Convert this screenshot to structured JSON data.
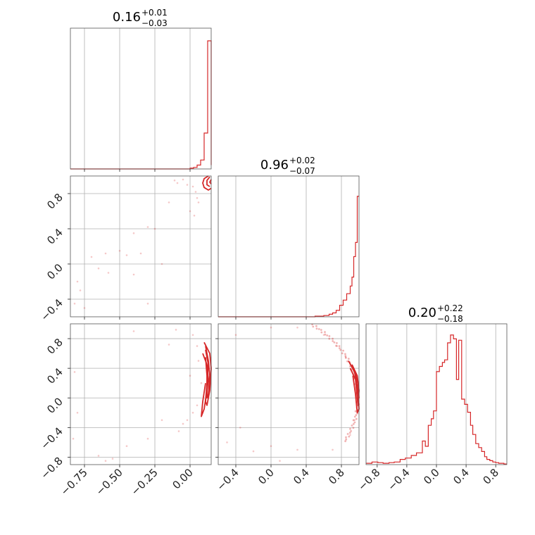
{
  "chart_data": [
    {
      "type": "histogram",
      "panel": "param1-marginal",
      "title": {
        "median": "0.16",
        "plus": "+0.01",
        "minus": "−0.03"
      },
      "xlim": [
        -0.85,
        0.15
      ],
      "grid_x": [
        -0.75,
        -0.5,
        -0.25,
        0.0
      ],
      "bin_width": 0.025,
      "bins": [
        {
          "x": -0.85,
          "y": 0
        },
        {
          "x": 0.0,
          "y": 0.006
        },
        {
          "x": 0.025,
          "y": 0.012
        },
        {
          "x": 0.05,
          "y": 0.03
        },
        {
          "x": 0.075,
          "y": 0.07
        },
        {
          "x": 0.1,
          "y": 0.28
        },
        {
          "x": 0.125,
          "y": 1.0
        },
        {
          "x": 0.15,
          "y": 0.03
        }
      ]
    },
    {
      "type": "scatter_contour",
      "panel": "param2-vs-param1",
      "xlim": [
        -0.85,
        0.15
      ],
      "ylim": [
        -0.6,
        1.0
      ],
      "grid_x": [
        -0.75,
        -0.5,
        -0.25,
        0.0
      ],
      "grid_y": [
        -0.4,
        0.0,
        0.4,
        0.8
      ],
      "yticklabels": [
        "−0.4",
        "0.0",
        "0.4",
        "0.8"
      ],
      "points": [
        [
          -0.11,
          0.95
        ],
        [
          -0.09,
          0.92
        ],
        [
          -0.05,
          0.96
        ],
        [
          -0.02,
          0.9
        ],
        [
          0.02,
          0.88
        ],
        [
          0.04,
          0.82
        ],
        [
          0.05,
          0.75
        ],
        [
          0.06,
          0.7
        ],
        [
          0.0,
          0.6
        ],
        [
          0.03,
          0.55
        ],
        [
          -0.15,
          0.7
        ],
        [
          -0.3,
          0.42
        ],
        [
          -0.25,
          0.4
        ],
        [
          -0.4,
          0.35
        ],
        [
          -0.5,
          0.15
        ],
        [
          -0.45,
          0.1
        ],
        [
          -0.6,
          0.12
        ],
        [
          -0.7,
          0.08
        ],
        [
          -0.65,
          -0.05
        ],
        [
          -0.8,
          -0.2
        ],
        [
          -0.78,
          -0.3
        ],
        [
          -0.82,
          -0.45
        ],
        [
          -0.75,
          -0.5
        ],
        [
          -0.35,
          0.12
        ],
        [
          -0.4,
          -0.12
        ],
        [
          -0.58,
          -0.1
        ],
        [
          -0.3,
          -0.45
        ],
        [
          -0.2,
          0.0
        ]
      ],
      "contours": [
        [
          [
            0.13,
            1.0
          ],
          [
            0.1,
            0.97
          ],
          [
            0.09,
            0.92
          ],
          [
            0.1,
            0.87
          ],
          [
            0.13,
            0.84
          ],
          [
            0.15,
            0.86
          ]
        ],
        [
          [
            0.14,
            0.99
          ],
          [
            0.12,
            0.95
          ],
          [
            0.12,
            0.9
          ],
          [
            0.14,
            0.88
          ]
        ],
        [
          [
            0.15,
            0.96
          ],
          [
            0.14,
            0.93
          ],
          [
            0.15,
            0.91
          ]
        ]
      ]
    },
    {
      "type": "histogram",
      "panel": "param2-marginal",
      "title": {
        "median": "0.96",
        "plus": "+0.02",
        "minus": "−0.07"
      },
      "xlim": [
        -0.6,
        1.0
      ],
      "grid_x": [
        -0.4,
        0.0,
        0.4,
        0.8
      ],
      "bin_width": 0.02,
      "bins": [
        {
          "x": -0.6,
          "y": 0
        },
        {
          "x": 0.5,
          "y": 0.005
        },
        {
          "x": 0.6,
          "y": 0.01
        },
        {
          "x": 0.66,
          "y": 0.02
        },
        {
          "x": 0.7,
          "y": 0.03
        },
        {
          "x": 0.74,
          "y": 0.05
        },
        {
          "x": 0.78,
          "y": 0.09
        },
        {
          "x": 0.82,
          "y": 0.13
        },
        {
          "x": 0.86,
          "y": 0.18
        },
        {
          "x": 0.9,
          "y": 0.24
        },
        {
          "x": 0.92,
          "y": 0.31
        },
        {
          "x": 0.94,
          "y": 0.47
        },
        {
          "x": 0.96,
          "y": 0.58
        },
        {
          "x": 0.98,
          "y": 0.94
        }
      ]
    },
    {
      "type": "scatter_contour",
      "panel": "param3-vs-param1",
      "xlim": [
        -0.85,
        0.15
      ],
      "ylim": [
        -0.9,
        1.0
      ],
      "grid_x": [
        -0.75,
        -0.5,
        -0.25,
        0.0
      ],
      "grid_y": [
        -0.8,
        -0.4,
        0.0,
        0.4,
        0.8
      ],
      "xticklabels": [
        "−0.75",
        "−0.50",
        "−0.25",
        "0.00"
      ],
      "yticklabels": [
        "−0.8",
        "−0.4",
        "0.0",
        "0.4",
        "0.8"
      ],
      "points": [
        [
          -0.4,
          0.9
        ],
        [
          -0.1,
          0.92
        ],
        [
          0.02,
          0.85
        ],
        [
          0.05,
          0.7
        ],
        [
          0.06,
          0.5
        ],
        [
          0.08,
          0.2
        ],
        [
          0.05,
          -0.1
        ],
        [
          0.02,
          -0.2
        ],
        [
          -0.02,
          -0.3
        ],
        [
          -0.05,
          -0.35
        ],
        [
          -0.08,
          -0.45
        ],
        [
          -0.15,
          0.72
        ],
        [
          -0.3,
          -0.55
        ],
        [
          -0.45,
          -0.65
        ],
        [
          -0.55,
          -0.82
        ],
        [
          -0.6,
          -0.85
        ],
        [
          -0.65,
          -0.78
        ],
        [
          -0.83,
          -0.55
        ],
        [
          -0.8,
          -0.2
        ],
        [
          -0.82,
          0.35
        ],
        [
          -0.2,
          -0.3
        ],
        [
          0.0,
          0.3
        ]
      ],
      "contours": [
        [
          [
            0.1,
            0.75
          ],
          [
            0.14,
            0.6
          ],
          [
            0.15,
            0.4
          ],
          [
            0.14,
            0.1
          ],
          [
            0.12,
            -0.1
          ],
          [
            0.11,
            -0.05
          ],
          [
            0.12,
            0.2
          ],
          [
            0.13,
            0.45
          ],
          [
            0.11,
            0.65
          ]
        ],
        [
          [
            0.11,
            0.7
          ],
          [
            0.13,
            0.5
          ],
          [
            0.14,
            0.3
          ],
          [
            0.13,
            0.05
          ],
          [
            0.12,
            0.0
          ],
          [
            0.12,
            0.3
          ],
          [
            0.11,
            0.55
          ]
        ],
        [
          [
            0.09,
            0.6
          ],
          [
            0.12,
            0.45
          ],
          [
            0.13,
            0.25
          ],
          [
            0.12,
            0.1
          ],
          [
            0.1,
            -0.15
          ],
          [
            0.08,
            -0.25
          ],
          [
            0.09,
            -0.05
          ],
          [
            0.11,
            0.2
          ]
        ]
      ]
    },
    {
      "type": "scatter_contour",
      "panel": "param3-vs-param2",
      "xlim": [
        -0.6,
        1.0
      ],
      "ylim": [
        -0.9,
        1.0
      ],
      "grid_x": [
        -0.4,
        0.0,
        0.4,
        0.8
      ],
      "grid_y": [
        -0.8,
        -0.4,
        0.0,
        0.4,
        0.8
      ],
      "xticklabels": [
        "−0.4",
        "0.0",
        "0.4",
        "0.8"
      ],
      "points": [
        [
          -0.4,
          0.85
        ],
        [
          0.0,
          0.95
        ],
        [
          0.3,
          0.95
        ],
        [
          0.6,
          0.85
        ],
        [
          0.75,
          0.7
        ],
        [
          0.85,
          0.55
        ],
        [
          0.95,
          -0.3
        ],
        [
          0.9,
          -0.5
        ],
        [
          0.3,
          -0.7
        ],
        [
          0.0,
          -0.65
        ],
        [
          -0.2,
          -0.72
        ],
        [
          -0.35,
          -0.4
        ],
        [
          0.1,
          -0.85
        ],
        [
          0.7,
          -0.7
        ],
        [
          -0.5,
          -0.6
        ]
      ],
      "arc": {
        "cx": -0.2,
        "cy": 0.0,
        "r": 1.19,
        "from_deg": 62,
        "to_deg": -30
      },
      "contours": [
        [
          [
            0.92,
            0.45
          ],
          [
            0.98,
            0.3
          ],
          [
            1.0,
            0.1
          ],
          [
            0.99,
            -0.1
          ],
          [
            0.98,
            0.0
          ],
          [
            0.96,
            0.25
          ],
          [
            0.9,
            0.4
          ]
        ],
        [
          [
            0.94,
            0.4
          ],
          [
            0.99,
            0.2
          ],
          [
            1.0,
            0.0
          ],
          [
            0.97,
            0.15
          ]
        ],
        [
          [
            0.88,
            0.5
          ],
          [
            0.95,
            0.35
          ],
          [
            0.99,
            0.1
          ],
          [
            1.0,
            -0.15
          ],
          [
            0.98,
            -0.2
          ],
          [
            0.96,
            0.05
          ],
          [
            0.93,
            0.3
          ]
        ]
      ]
    },
    {
      "type": "histogram",
      "panel": "param3-marginal",
      "title": {
        "median": "0.20",
        "plus": "+0.22",
        "minus": "−0.18"
      },
      "xlim": [
        -0.95,
        0.95
      ],
      "grid_x": [
        -0.8,
        -0.4,
        0.0,
        0.4,
        0.8
      ],
      "xticklabels": [
        "−0.8",
        "−0.4",
        "0.0",
        "0.4",
        "0.8"
      ],
      "bin_width": 0.038,
      "bins": [
        {
          "x": -0.95,
          "y": 0.01
        },
        {
          "x": -0.87,
          "y": 0.02
        },
        {
          "x": -0.79,
          "y": 0.015
        },
        {
          "x": -0.72,
          "y": 0.01
        },
        {
          "x": -0.64,
          "y": 0.015
        },
        {
          "x": -0.57,
          "y": 0.02
        },
        {
          "x": -0.49,
          "y": 0.04
        },
        {
          "x": -0.42,
          "y": 0.05
        },
        {
          "x": -0.34,
          "y": 0.07
        },
        {
          "x": -0.27,
          "y": 0.09
        },
        {
          "x": -0.19,
          "y": 0.18
        },
        {
          "x": -0.15,
          "y": 0.14
        },
        {
          "x": -0.11,
          "y": 0.3
        },
        {
          "x": -0.07,
          "y": 0.35
        },
        {
          "x": -0.04,
          "y": 0.41
        },
        {
          "x": 0.0,
          "y": 0.71
        },
        {
          "x": 0.04,
          "y": 0.75
        },
        {
          "x": 0.08,
          "y": 0.78
        },
        {
          "x": 0.11,
          "y": 0.8
        },
        {
          "x": 0.15,
          "y": 0.93
        },
        {
          "x": 0.19,
          "y": 0.99
        },
        {
          "x": 0.23,
          "y": 0.96
        },
        {
          "x": 0.27,
          "y": 0.65
        },
        {
          "x": 0.3,
          "y": 0.95
        },
        {
          "x": 0.34,
          "y": 0.5
        },
        {
          "x": 0.38,
          "y": 0.46
        },
        {
          "x": 0.42,
          "y": 0.4
        },
        {
          "x": 0.46,
          "y": 0.3
        },
        {
          "x": 0.49,
          "y": 0.23
        },
        {
          "x": 0.53,
          "y": 0.16
        },
        {
          "x": 0.57,
          "y": 0.13
        },
        {
          "x": 0.61,
          "y": 0.1
        },
        {
          "x": 0.65,
          "y": 0.06
        },
        {
          "x": 0.68,
          "y": 0.04
        },
        {
          "x": 0.72,
          "y": 0.03
        },
        {
          "x": 0.76,
          "y": 0.02
        },
        {
          "x": 0.8,
          "y": 0.015
        },
        {
          "x": 0.84,
          "y": 0.01
        },
        {
          "x": 0.91,
          "y": 0.005
        }
      ]
    }
  ],
  "colors": {
    "series": "#d62728",
    "grid": "#b0b0b0",
    "frame": "#555555",
    "text": "#222222"
  }
}
